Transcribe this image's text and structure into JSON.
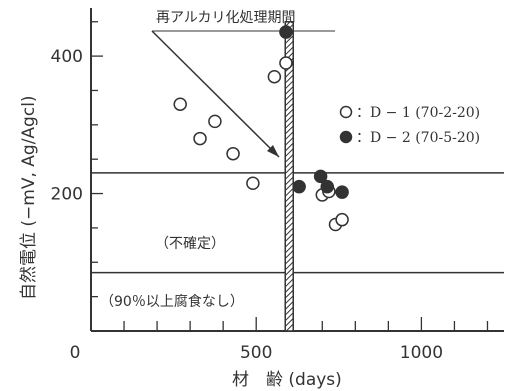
{
  "chart_data": {
    "type": "scatter",
    "xlabel": "材　齢 (days)",
    "ylabel": "自然電位 (−mV, Ag/Agcl)",
    "xlim": [
      0,
      1250
    ],
    "ylim": [
      0,
      470
    ],
    "x_ticks": [
      0,
      500,
      1000
    ],
    "x_tick_labels": [
      "0",
      "500",
      "1000"
    ],
    "y_ticks": [
      200,
      400
    ],
    "y_tick_labels": [
      "200",
      "400"
    ],
    "grid": false,
    "legend_position": "right",
    "series": [
      {
        "name": "：D − 1 (70-2-20)",
        "marker": "open-circle",
        "points": [
          {
            "x": 270,
            "y": 330
          },
          {
            "x": 330,
            "y": 280
          },
          {
            "x": 375,
            "y": 305
          },
          {
            "x": 430,
            "y": 258
          },
          {
            "x": 490,
            "y": 215
          },
          {
            "x": 555,
            "y": 370
          },
          {
            "x": 590,
            "y": 390
          },
          {
            "x": 700,
            "y": 198
          },
          {
            "x": 720,
            "y": 203
          },
          {
            "x": 740,
            "y": 155
          },
          {
            "x": 760,
            "y": 162
          }
        ]
      },
      {
        "name": "：D − 2 (70-5-20)",
        "marker": "filled-circle",
        "points": [
          {
            "x": 590,
            "y": 435
          },
          {
            "x": 630,
            "y": 210
          },
          {
            "x": 695,
            "y": 225
          },
          {
            "x": 715,
            "y": 210
          },
          {
            "x": 760,
            "y": 202
          }
        ]
      }
    ],
    "reference_lines": [
      {
        "orientation": "horizontal",
        "y": 230
      },
      {
        "orientation": "horizontal",
        "y": 85
      },
      {
        "orientation": "vertical",
        "x": 600,
        "style": "hatched-band"
      }
    ],
    "annotations": {
      "rework_period": "再アルカリ化処理期間",
      "uncertain_zone": "（不確定）",
      "no_corrosion_zone": "（90％以上腐食なし）"
    }
  }
}
